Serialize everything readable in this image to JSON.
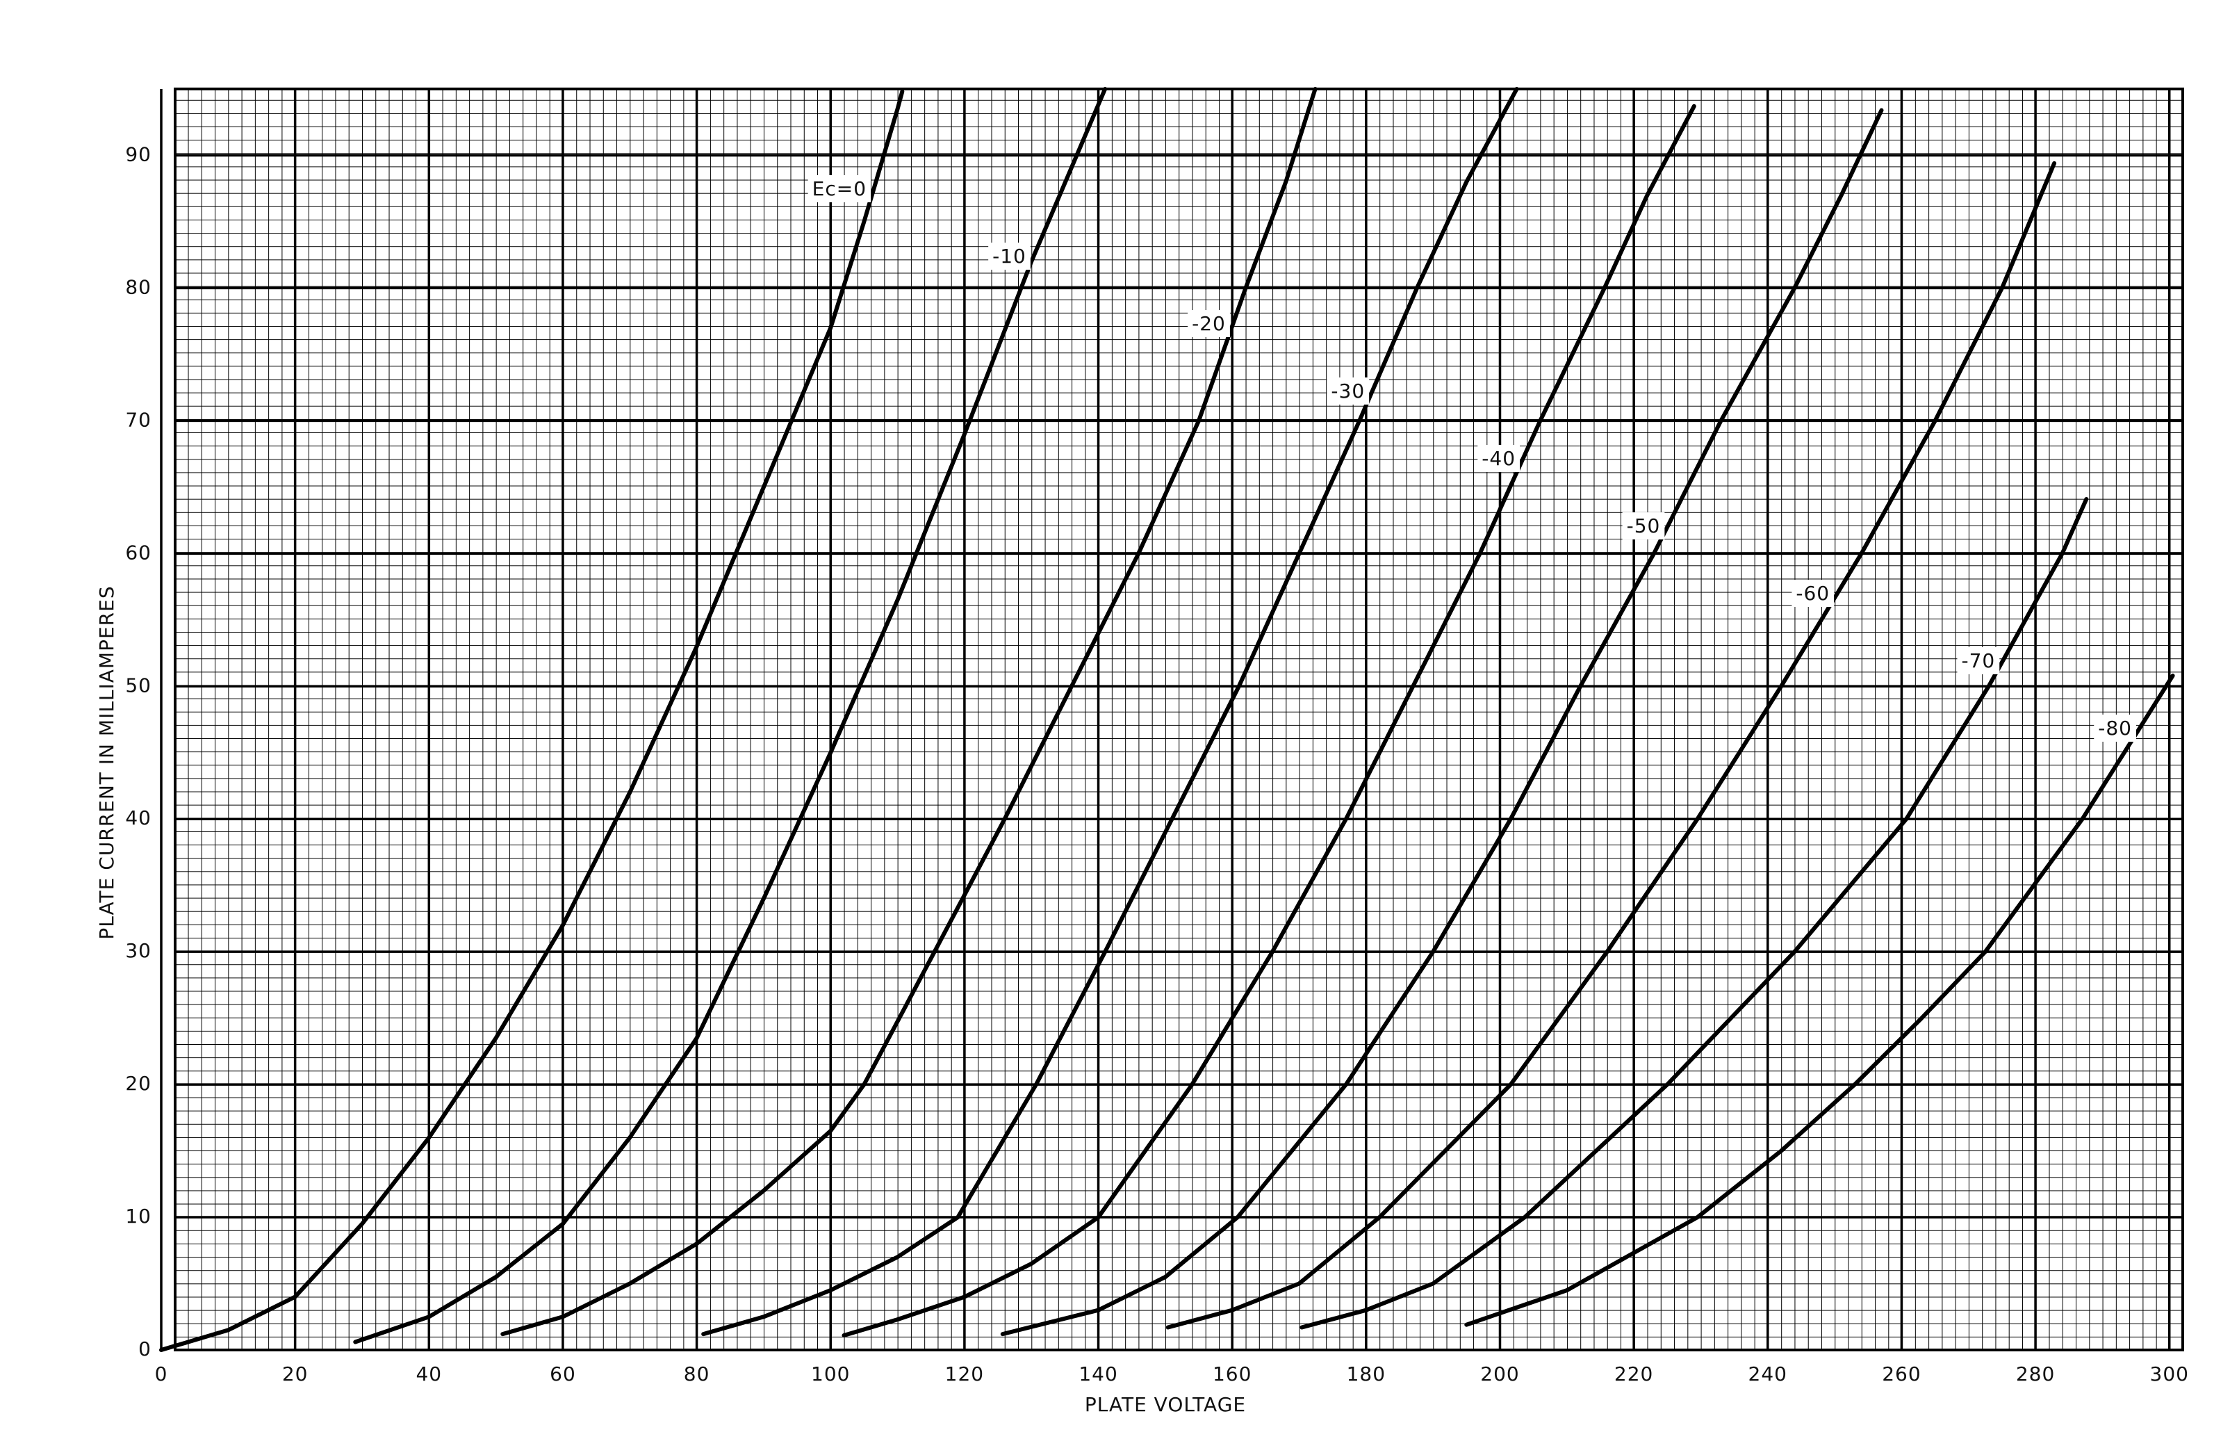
{
  "chart_data": {
    "type": "line",
    "x_label": "PLATE VOLTAGE",
    "y_label": "PLATE CURRENT IN MILLIAMPERES",
    "xlim": [
      0,
      302
    ],
    "ylim": [
      0,
      95
    ],
    "xticks": [
      0,
      20,
      40,
      60,
      80,
      100,
      120,
      140,
      160,
      180,
      200,
      220,
      240,
      260,
      280,
      300
    ],
    "yticks": [
      0,
      10,
      20,
      30,
      40,
      50,
      60,
      70,
      80,
      90
    ],
    "grid": true,
    "color": "#000000",
    "series": [
      {
        "name": "Ec=0",
        "x": [
          0,
          10,
          20,
          30,
          40,
          50,
          60,
          70,
          80,
          90,
          100,
          105,
          110,
          110.7
        ],
        "values": [
          0,
          1.5,
          4,
          9.5,
          16,
          23.5,
          32,
          42,
          53,
          65,
          77,
          85,
          93.5,
          94.8
        ]
      },
      {
        "name": "-10",
        "x": [
          29,
          40,
          50,
          60,
          70,
          80,
          90,
          100,
          110,
          120,
          130,
          141
        ],
        "values": [
          0.6,
          2.5,
          5.5,
          9.5,
          16,
          23.5,
          34,
          45,
          56.5,
          69,
          82,
          95
        ]
      },
      {
        "name": "-20",
        "x": [
          51,
          60,
          70,
          80,
          90,
          100,
          105,
          115,
          126,
          136,
          146,
          155,
          162,
          168,
          172.4
        ],
        "values": [
          1.2,
          2.5,
          5,
          8,
          12,
          16.5,
          20,
          29.5,
          40,
          50,
          60,
          70,
          80,
          88,
          95
        ]
      },
      {
        "name": "-30",
        "x": [
          81,
          90,
          100,
          110,
          119,
          130.7,
          141,
          151,
          161,
          170,
          179,
          187.6,
          195,
          202.5
        ],
        "values": [
          1.2,
          2.5,
          4.5,
          7,
          10,
          20,
          30,
          40,
          50,
          60,
          70,
          80,
          88,
          95
        ]
      },
      {
        "name": "-40",
        "x": [
          102,
          110,
          120,
          130,
          140,
          154,
          166,
          177,
          187,
          197,
          206,
          215.6,
          222,
          229
        ],
        "values": [
          1.1,
          2.3,
          4,
          6.5,
          10,
          20,
          30,
          40,
          50,
          60,
          70,
          80,
          87,
          93.7
        ]
      },
      {
        "name": "-50",
        "x": [
          125.7,
          140,
          150,
          160.8,
          177,
          190,
          201.6,
          212,
          223,
          233,
          244,
          251,
          257
        ],
        "values": [
          1.2,
          3,
          5.5,
          10,
          20,
          30,
          40,
          50,
          60,
          70,
          80,
          87,
          93.4
        ]
      },
      {
        "name": "-60",
        "x": [
          150.4,
          160,
          170,
          182,
          201.6,
          216,
          229.5,
          242,
          254,
          265,
          275,
          282.8
        ],
        "values": [
          1.7,
          3,
          5,
          10,
          20,
          30,
          40,
          50,
          60,
          70,
          80,
          89.4
        ]
      },
      {
        "name": "-70",
        "x": [
          170.4,
          180,
          190,
          203.7,
          225,
          244,
          260.7,
          273,
          284,
          287.6
        ],
        "values": [
          1.7,
          3,
          5,
          10,
          20,
          30,
          40,
          50,
          60,
          64.1
        ]
      },
      {
        "name": "-80",
        "x": [
          195,
          210,
          229.5,
          242,
          253,
          263,
          272.5,
          287,
          300.5
        ],
        "values": [
          1.9,
          4.5,
          10,
          15,
          20,
          25,
          30,
          40,
          50.8
        ]
      }
    ]
  }
}
